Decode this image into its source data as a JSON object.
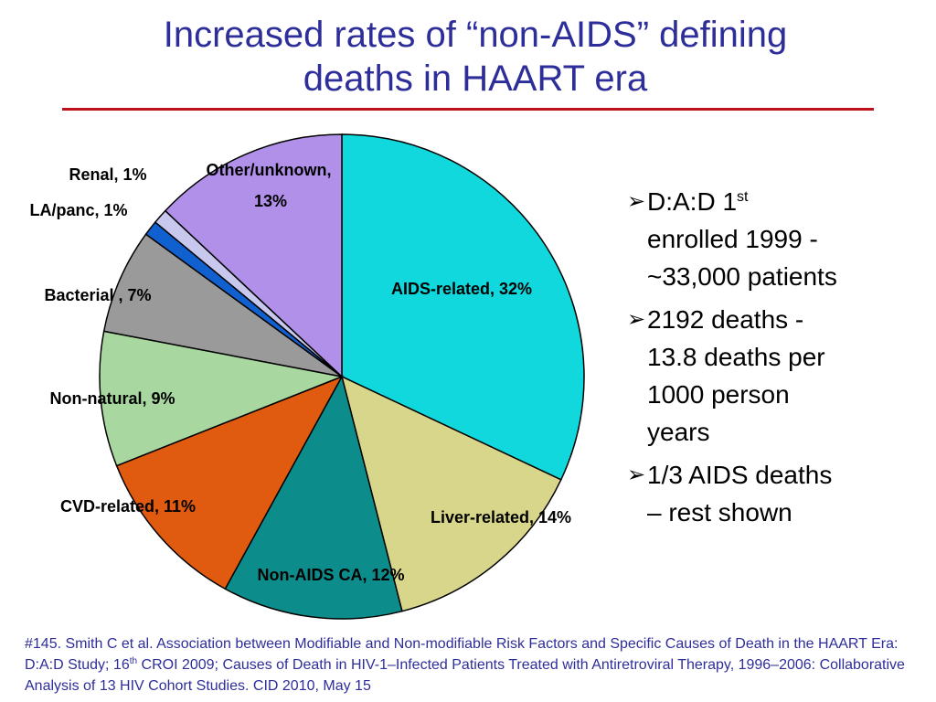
{
  "title_line1": "Increased rates of “non-AIDS” defining",
  "title_line2": "deaths in HAART era",
  "colors": {
    "title": "#2e2e9a",
    "rule": "#c0101c",
    "footnote": "#2e2e9a"
  },
  "chart_data": {
    "type": "pie",
    "title": "",
    "slices": [
      {
        "name": "AIDS-related",
        "value": 32,
        "label": "AIDS-related, 32%",
        "color": "#10d8dc"
      },
      {
        "name": "Liver-related",
        "value": 14,
        "label": "Liver-related, 14%",
        "color": "#d8d68a"
      },
      {
        "name": "Non-AIDS CA",
        "value": 12,
        "label": "Non-AIDS CA, 12%",
        "color": "#0c8c8a"
      },
      {
        "name": "CVD-related",
        "value": 11,
        "label": "CVD-related, 11%",
        "color": "#e05a10"
      },
      {
        "name": "Non-natural",
        "value": 9,
        "label": "Non-natural, 9%",
        "color": "#a8d8a0"
      },
      {
        "name": "Bacterial",
        "value": 7,
        "label": "Bacterial , 7%",
        "color": "#9a9a9a"
      },
      {
        "name": "LA/panc",
        "value": 1,
        "label": "LA/panc, 1%",
        "color": "#1060d0"
      },
      {
        "name": "Renal",
        "value": 1,
        "label": "Renal, 1%",
        "color": "#c8c8ee"
      },
      {
        "name": "Other/unknown",
        "value": 13,
        "label_line1": "Other/unknown,",
        "label_line2": "13%",
        "color": "#b090e8"
      }
    ],
    "legend": "none"
  },
  "bullets": {
    "b1_line1_pre": "D:A:D 1",
    "b1_line1_sup": "st",
    "b1_line2": "enrolled 1999 -",
    "b1_line3": "~33,000 patients",
    "b2_line1": "2192 deaths -",
    "b2_line2": "13.8 deaths per",
    "b2_line3": "1000 person",
    "b2_line4": "years",
    "b3_line1": "1/3 AIDS deaths",
    "b3_line2": "– rest shown",
    "arrow": "➢"
  },
  "footnote": {
    "part1": "#145. Smith C et al. Association between Modifiable and Non-modifiable Risk Factors and Specific Causes of Death in the HAART Era: D:A:D Study; 16",
    "sup": "th",
    "part2": " CROI 2009; Causes of Death in HIV-1–Infected Patients Treated with Antiretroviral Therapy, 1996–2006: Collaborative Analysis of 13 HIV Cohort Studies. CID 2010, May 15"
  }
}
